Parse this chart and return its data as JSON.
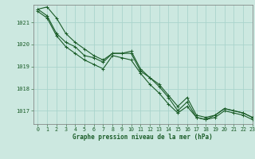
{
  "title": "Graphe pression niveau de la mer (hPa)",
  "background_color": "#cce8e0",
  "plot_bg_color": "#cce8e0",
  "grid_color": "#aad4cc",
  "line_color": "#1a5c28",
  "xlim": [
    -0.5,
    23
  ],
  "ylim": [
    1016.4,
    1021.8
  ],
  "yticks": [
    1017,
    1018,
    1019,
    1020,
    1021
  ],
  "xticks": [
    0,
    1,
    2,
    3,
    4,
    5,
    6,
    7,
    8,
    9,
    10,
    11,
    12,
    13,
    14,
    15,
    16,
    17,
    18,
    19,
    20,
    21,
    22,
    23
  ],
  "series": [
    [
      1021.6,
      1021.7,
      1021.2,
      1020.5,
      1020.1,
      1019.8,
      1019.5,
      1019.3,
      1019.6,
      1019.6,
      1019.6,
      1018.8,
      1018.5,
      1018.2,
      1017.7,
      1017.2,
      1017.6,
      1016.8,
      1016.7,
      1016.8,
      1017.1,
      1017.0,
      1016.9,
      1016.7
    ],
    [
      1021.6,
      1021.3,
      1020.5,
      1020.1,
      1019.9,
      1019.5,
      1019.4,
      1019.2,
      1019.6,
      1019.6,
      1019.7,
      1018.9,
      1018.5,
      1018.1,
      1017.6,
      1017.0,
      1017.4,
      1016.7,
      1016.6,
      1016.8,
      1017.1,
      1017.0,
      1016.9,
      1016.7
    ],
    [
      1021.5,
      1021.2,
      1020.4,
      1019.9,
      1019.6,
      1019.3,
      1019.1,
      1018.9,
      1019.5,
      1019.4,
      1019.3,
      1018.7,
      1018.2,
      1017.8,
      1017.3,
      1016.9,
      1017.2,
      1016.7,
      1016.6,
      1016.7,
      1017.0,
      1016.9,
      1016.8,
      1016.6
    ]
  ],
  "title_fontsize": 5.5,
  "tick_fontsize": 4.8,
  "linewidth": 0.8,
  "markersize": 3.0,
  "markeredgewidth": 0.7
}
